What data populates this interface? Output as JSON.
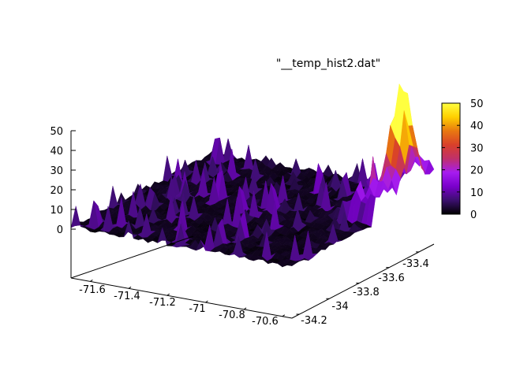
{
  "chart_data": {
    "type": "surface3d",
    "legend_entry": "\"__temp_hist2.dat\"",
    "x_ticks": [
      "-71.6",
      "-71.4",
      "-71.2",
      "-71",
      "-70.8",
      "-70.6"
    ],
    "y_ticks": [
      "-34.2",
      "-34",
      "-33.8",
      "-33.6",
      "-33.4"
    ],
    "z_ticks": [
      "0",
      "10",
      "20",
      "30",
      "40",
      "50"
    ],
    "colorbar_ticks": [
      "0",
      "10",
      "20",
      "30",
      "40",
      "50"
    ],
    "xlim": [
      -71.7,
      -70.55
    ],
    "ylim": [
      -34.25,
      -33.3
    ],
    "zlim": [
      0,
      50
    ],
    "cblim": [
      0,
      50
    ],
    "palette": [
      "#000000",
      "#3b0f6e",
      "#7a00cc",
      "#a61cf0",
      "#c0306a",
      "#d9402a",
      "#e87810",
      "#ffd000",
      "#ffff40"
    ],
    "surface_features": [
      {
        "kind": "peak",
        "x": -70.6,
        "y": -33.45,
        "z": 50
      },
      {
        "kind": "ridge",
        "x": -70.6,
        "y_range": [
          -33.7,
          -33.3
        ],
        "z": 15
      },
      {
        "kind": "noise",
        "z_range": [
          0,
          10
        ]
      }
    ]
  }
}
